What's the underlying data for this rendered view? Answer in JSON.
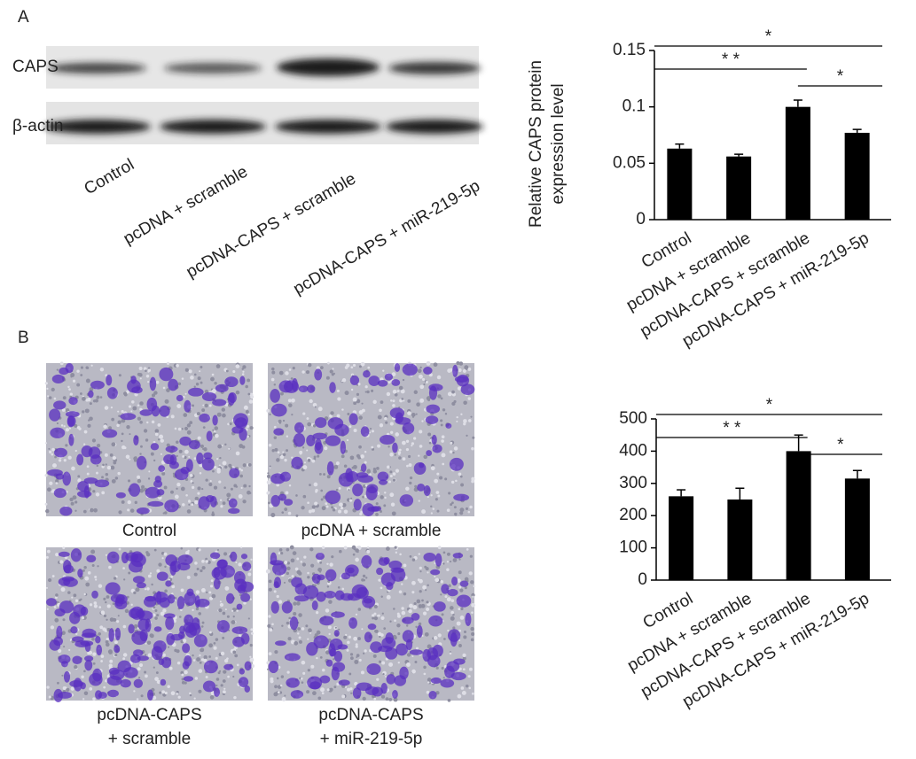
{
  "panel_a": {
    "label": "A",
    "blot_rows": [
      "CAPS",
      "β-actin"
    ],
    "lanes": [
      "Control",
      "pcDNA + scramble",
      "pcDNA-CAPS + scramble",
      "pcDNA-CAPS + miR-219-5p"
    ]
  },
  "panel_b": {
    "label": "B",
    "images": [
      [
        "Control"
      ],
      [
        "pcDNA + scramble"
      ],
      [
        "pcDNA-CAPS",
        "+ scramble"
      ],
      [
        "pcDNA-CAPS",
        "+ miR-219-5p"
      ]
    ]
  },
  "chart_data": [
    {
      "type": "bar",
      "ylabel": [
        "Relative CAPS protein",
        "expression level"
      ],
      "categories": [
        "Control",
        "pcDNA + scramble",
        "pcDNA-CAPS + scramble",
        "pcDNA-CAPS + miR-219-5p"
      ],
      "values": [
        0.063,
        0.056,
        0.1,
        0.077
      ],
      "errors": [
        0.004,
        0.002,
        0.006,
        0.003
      ],
      "color": "#000000",
      "ylim": [
        0,
        0.15
      ],
      "yticks": [
        0,
        0.05,
        0.1,
        0.15
      ],
      "brackets": [
        {
          "text": "*",
          "groups": [
            0,
            3
          ]
        },
        {
          "text": "* *",
          "groups": [
            0,
            2
          ]
        },
        {
          "text": "*",
          "groups": [
            2,
            3
          ]
        }
      ]
    },
    {
      "type": "bar",
      "categories": [
        "Control",
        "pcDNA + scramble",
        "pcDNA-CAPS + scramble",
        "pcDNA-CAPS + miR-219-5p"
      ],
      "values": [
        260,
        250,
        400,
        315
      ],
      "errors": [
        20,
        35,
        50,
        25
      ],
      "color": "#000000",
      "ylim": [
        0,
        500
      ],
      "yticks": [
        0,
        100,
        200,
        300,
        400,
        500
      ],
      "brackets": [
        {
          "text": "*",
          "groups": [
            0,
            3
          ]
        },
        {
          "text": "* *",
          "groups": [
            0,
            2
          ]
        },
        {
          "text": "*",
          "groups": [
            2,
            3
          ]
        }
      ]
    }
  ]
}
